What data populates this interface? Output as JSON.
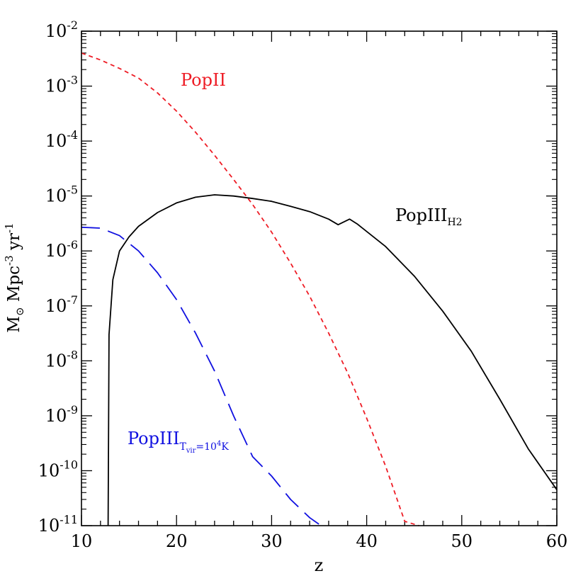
{
  "chart_data": {
    "type": "line",
    "xlabel": "z",
    "ylabel": {
      "unit": "M",
      "unit_sub": "⊙",
      "part1": " Mpc",
      "part1_sup": "-3",
      "part2": " yr",
      "part2_sup": "-1"
    },
    "x_ticks": [
      "10",
      "20",
      "30",
      "40",
      "50",
      "60"
    ],
    "y_ticks": [
      {
        "base": "10",
        "exp": "-2"
      },
      {
        "base": "10",
        "exp": "-3"
      },
      {
        "base": "10",
        "exp": "-4"
      },
      {
        "base": "10",
        "exp": "-5"
      },
      {
        "base": "10",
        "exp": "-6"
      },
      {
        "base": "10",
        "exp": "-7"
      },
      {
        "base": "10",
        "exp": "-8"
      },
      {
        "base": "10",
        "exp": "-9"
      },
      {
        "base": "10",
        "exp": "-10"
      },
      {
        "base": "10",
        "exp": "-11"
      }
    ],
    "xlim": [
      10,
      60
    ],
    "ylim": [
      1e-11,
      0.01
    ],
    "yscale": "log",
    "series": [
      {
        "name": "PopII",
        "color": "#ee1c25",
        "style": "short-dash",
        "x": [
          10,
          12,
          14,
          16,
          18,
          20,
          22,
          24,
          26,
          28,
          30,
          32,
          34,
          36,
          38,
          40,
          42,
          44,
          45.5
        ],
        "y": [
          0.004,
          0.003,
          0.0021,
          0.0014,
          0.00075,
          0.00035,
          0.000145,
          5.5e-05,
          2e-05,
          7e-06,
          2.2e-06,
          6e-07,
          1.5e-07,
          3.2e-08,
          6e-09,
          9e-10,
          1.2e-10,
          1.2e-11,
          1e-11
        ]
      },
      {
        "name": "PopIII H2",
        "color": "#000000",
        "style": "solid",
        "x": [
          12.8,
          12.9,
          13.3,
          14,
          15,
          16,
          18,
          20,
          22,
          24,
          26,
          28,
          30,
          32,
          34,
          36,
          37,
          38.2,
          39,
          42,
          45,
          48,
          51,
          54,
          57,
          60
        ],
        "y": [
          1e-11,
          3e-08,
          3e-07,
          1e-06,
          1.8e-06,
          2.8e-06,
          5e-06,
          7.5e-06,
          9.5e-06,
          1.05e-05,
          1e-05,
          9e-06,
          8e-06,
          6.5e-06,
          5.2e-06,
          3.8e-06,
          3e-06,
          3.8e-06,
          3.1e-06,
          1.2e-06,
          3.5e-07,
          8e-08,
          1.5e-08,
          2e-09,
          2.5e-10,
          4.5e-11
        ]
      },
      {
        "name": "PopIII Tvir=10^4K",
        "color": "#1010e0",
        "style": "long-dash",
        "x": [
          10,
          12,
          14,
          16,
          18,
          20,
          22,
          24,
          26,
          28,
          30,
          32,
          34,
          35.2
        ],
        "y": [
          2.7e-06,
          2.6e-06,
          1.9e-06,
          1e-06,
          4e-07,
          1.3e-07,
          3.2e-08,
          6.5e-09,
          1e-09,
          1.8e-10,
          8e-11,
          3e-11,
          1.4e-11,
          1e-11
        ]
      }
    ],
    "annotations": {
      "popii": "PopII",
      "popiii_h2_main": "PopIII",
      "popiii_h2_sub": "H2",
      "popiii_tvir_main": "PopIII",
      "popiii_tvir_sub_a": "T",
      "popiii_tvir_sub_a_sub": "vir",
      "popiii_tvir_sub_b": "=10",
      "popiii_tvir_sub_b_sup": "4",
      "popiii_tvir_sub_c": "K"
    }
  }
}
